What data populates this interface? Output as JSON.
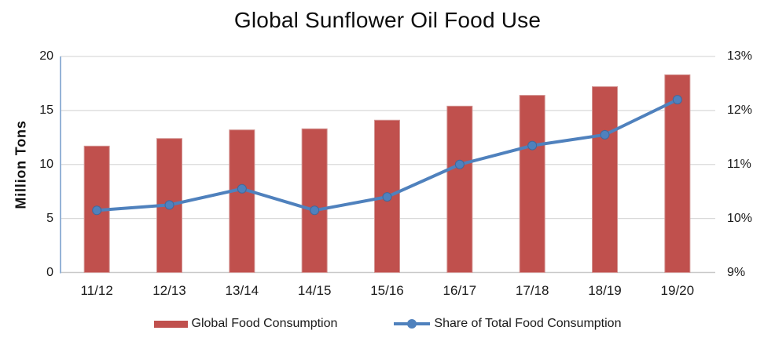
{
  "title": "Global Sunflower Oil Food Use",
  "axes": {
    "left": {
      "title": "Million Tons",
      "tick_labels": [
        "20",
        "15",
        "10",
        "5",
        "0"
      ]
    },
    "right": {
      "tick_labels": [
        "13%",
        "12%",
        "11%",
        "10%",
        "9%"
      ]
    }
  },
  "colors": {
    "bar": "#C0504D",
    "bar_edge": "#D39492",
    "line": "#4F81BD",
    "marker_edge": "#41699C",
    "gridline": "#D9D9D9",
    "axis_line_left": "#95B3D7",
    "axis_line_bottom": "#C9C9C9"
  },
  "chart_data": {
    "type": "bar+line combo (dual axis)",
    "title": "Global Sunflower Oil Food Use",
    "categories": [
      "11/12",
      "12/13",
      "13/14",
      "14/15",
      "15/16",
      "16/17",
      "17/18",
      "18/19",
      "19/20"
    ],
    "series": [
      {
        "name": "Global Food Consumption",
        "type": "bar",
        "axis": "left",
        "unit": "million tons",
        "values": [
          11.7,
          12.4,
          13.2,
          13.3,
          14.1,
          15.4,
          16.4,
          17.2,
          18.3
        ]
      },
      {
        "name": "Share of Total Food Consumption",
        "type": "line",
        "axis": "right",
        "unit": "%",
        "values": [
          10.15,
          10.25,
          10.55,
          10.15,
          10.4,
          11.0,
          11.35,
          11.55,
          12.2
        ]
      }
    ],
    "ylabel_left": "Million Tons",
    "ylim_left": [
      0,
      20
    ],
    "ylim_right": [
      9,
      13
    ],
    "grid": true,
    "legend_position": "bottom"
  }
}
